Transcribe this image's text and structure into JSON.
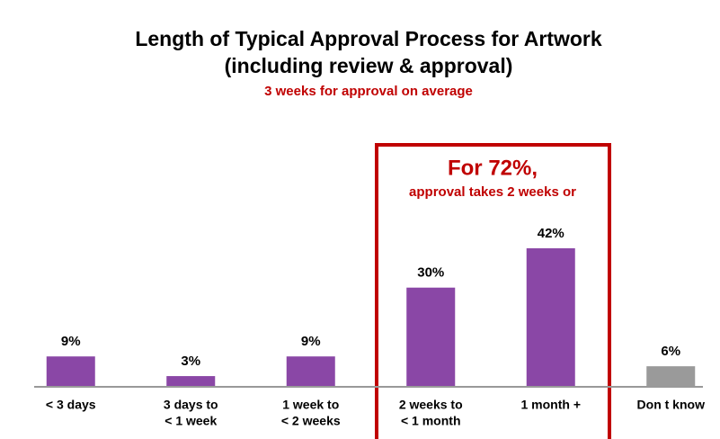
{
  "chart_data": {
    "type": "bar",
    "title": [
      "Length of Typical Approval Process for Artwork",
      "(including review & approval)"
    ],
    "subtitle": "3 weeks for approval on average",
    "annotations": [
      "For 72%,",
      "approval takes 2 weeks or"
    ],
    "categories": [
      [
        "< 3 days"
      ],
      [
        "3 days to",
        "< 1 week"
      ],
      [
        "1 week to",
        "< 2 weeks"
      ],
      [
        "2 weeks to",
        "< 1 month"
      ],
      [
        "1 month +"
      ],
      [
        "Don t know"
      ]
    ],
    "values": [
      9,
      3,
      9,
      30,
      42,
      6
    ],
    "value_labels": [
      "9%",
      "3%",
      "9%",
      "30%",
      "42%",
      "6%"
    ],
    "colors": [
      "#8a47a6",
      "#8a47a6",
      "#8a47a6",
      "#8a47a6",
      "#8a47a6",
      "#9a9a9a"
    ]
  }
}
